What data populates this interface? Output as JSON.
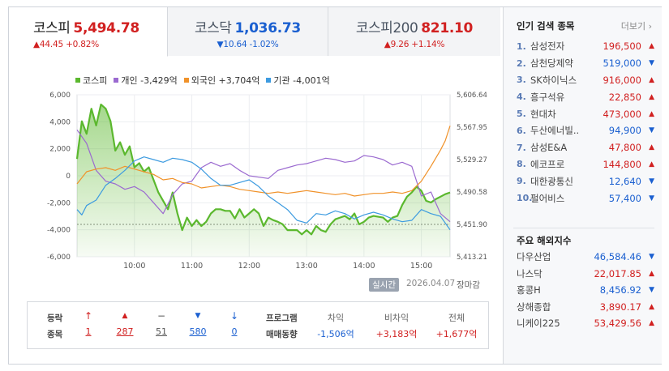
{
  "tabs": [
    {
      "name": "코스피",
      "value": "5,494.78",
      "change": "▲44.45 +0.82%",
      "dir": "up"
    },
    {
      "name": "코스닥",
      "value": "1,036.73",
      "change": "▼10.64 -1.02%",
      "dir": "down"
    },
    {
      "name": "코스피200",
      "value": "821.10",
      "change": "▲9.26 +1.14%",
      "dir": "up"
    }
  ],
  "legend": [
    {
      "label": "코스피",
      "color": "#5bb82e"
    },
    {
      "label": "개인 -3,429억",
      "color": "#9b6ad0"
    },
    {
      "label": "외국인 +3,704억",
      "color": "#f0922a"
    },
    {
      "label": "기관 -4,001억",
      "color": "#3d9be0"
    }
  ],
  "chart_data": {
    "type": "line",
    "x_ticks": [
      "10:00",
      "11:00",
      "12:00",
      "13:00",
      "14:00",
      "15:00"
    ],
    "x_range": [
      "09:00",
      "15:30"
    ],
    "y_left_ticks": [
      "6,000",
      "4,000",
      "2,000",
      "0",
      "-2,000",
      "-4,000",
      "-6,000"
    ],
    "y_left_range": [
      -6000,
      6000
    ],
    "y_left_unit": "억",
    "y_right_ticks": [
      "5,606.64",
      "5,567.95",
      "5,529.27",
      "5,490.58",
      "5,451.90",
      "5,413.21"
    ],
    "y_right_range": [
      5413.21,
      5606.64
    ],
    "reference_line": 5451.9,
    "series": [
      {
        "name": "코스피",
        "axis": "right",
        "color": "#5bb82e",
        "x": [
          "09:00",
          "09:05",
          "09:10",
          "09:15",
          "09:20",
          "09:25",
          "09:30",
          "09:35",
          "09:40",
          "09:45",
          "09:50",
          "09:55",
          "10:00",
          "10:05",
          "10:10",
          "10:15",
          "10:20",
          "10:25",
          "10:30",
          "10:35",
          "10:40",
          "10:45",
          "10:50",
          "10:55",
          "11:00",
          "11:05",
          "11:10",
          "11:15",
          "11:20",
          "11:25",
          "11:30",
          "11:35",
          "11:40",
          "11:45",
          "11:50",
          "11:55",
          "12:00",
          "12:05",
          "12:10",
          "12:15",
          "12:20",
          "12:25",
          "12:30",
          "12:35",
          "12:40",
          "12:45",
          "12:50",
          "12:55",
          "13:00",
          "13:05",
          "13:10",
          "13:15",
          "13:20",
          "13:25",
          "13:30",
          "13:35",
          "13:40",
          "13:45",
          "13:50",
          "13:55",
          "14:00",
          "14:05",
          "14:10",
          "14:15",
          "14:20",
          "14:25",
          "14:30",
          "14:35",
          "14:40",
          "14:45",
          "14:50",
          "14:55",
          "15:00",
          "15:05",
          "15:10",
          "15:15",
          "15:20",
          "15:25",
          "15:30"
        ],
        "y": [
          5530,
          5575,
          5560,
          5590,
          5570,
          5595,
          5590,
          5575,
          5540,
          5550,
          5535,
          5545,
          5520,
          5525,
          5515,
          5520,
          5505,
          5490,
          5480,
          5470,
          5490,
          5465,
          5445,
          5460,
          5450,
          5457,
          5450,
          5455,
          5465,
          5470,
          5470,
          5468,
          5468,
          5459,
          5470,
          5460,
          5465,
          5470,
          5465,
          5450,
          5460,
          5457,
          5455,
          5452,
          5445,
          5445,
          5445,
          5440,
          5445,
          5440,
          5450,
          5445,
          5443,
          5452,
          5458,
          5460,
          5462,
          5458,
          5465,
          5452,
          5455,
          5460,
          5462,
          5461,
          5460,
          5455,
          5460,
          5462,
          5475,
          5485,
          5490,
          5497,
          5492,
          5480,
          5478,
          5482,
          5485,
          5488,
          5490
        ]
      },
      {
        "name": "개인",
        "axis": "left",
        "color": "#9b6ad0",
        "x": [
          "09:00",
          "09:10",
          "09:20",
          "09:30",
          "09:40",
          "09:50",
          "10:00",
          "10:10",
          "10:20",
          "10:30",
          "10:40",
          "10:50",
          "11:00",
          "11:10",
          "11:20",
          "11:30",
          "11:40",
          "11:50",
          "12:00",
          "12:10",
          "12:20",
          "12:30",
          "12:40",
          "12:50",
          "13:00",
          "13:10",
          "13:20",
          "13:30",
          "13:40",
          "13:50",
          "14:00",
          "14:10",
          "14:20",
          "14:30",
          "14:40",
          "14:50",
          "15:00",
          "15:10",
          "15:20",
          "15:30"
        ],
        "y": [
          3400,
          2400,
          400,
          -400,
          -600,
          -1000,
          -800,
          -1200,
          -2000,
          -2800,
          -1400,
          -600,
          -400,
          600,
          1000,
          700,
          900,
          400,
          0,
          -100,
          -200,
          400,
          600,
          800,
          900,
          1100,
          1300,
          1200,
          1000,
          1100,
          1500,
          1400,
          1200,
          800,
          1000,
          700,
          -1500,
          -1200,
          -2800,
          -3400
        ]
      },
      {
        "name": "외국인",
        "axis": "left",
        "color": "#f0922a",
        "x": [
          "09:00",
          "09:10",
          "09:20",
          "09:30",
          "09:40",
          "09:50",
          "10:00",
          "10:10",
          "10:20",
          "10:30",
          "10:40",
          "10:50",
          "11:00",
          "11:10",
          "11:20",
          "11:30",
          "11:40",
          "11:50",
          "12:00",
          "12:10",
          "12:20",
          "12:30",
          "12:40",
          "12:50",
          "13:00",
          "13:10",
          "13:20",
          "13:30",
          "13:40",
          "13:50",
          "14:00",
          "14:10",
          "14:20",
          "14:30",
          "14:40",
          "14:50",
          "15:00",
          "15:10",
          "15:20",
          "15:25",
          "15:30"
        ],
        "y": [
          -600,
          300,
          500,
          600,
          400,
          700,
          500,
          300,
          100,
          -300,
          -200,
          -500,
          -600,
          -900,
          -800,
          -700,
          -800,
          -1000,
          -1100,
          -1200,
          -1300,
          -1200,
          -1300,
          -1200,
          -1100,
          -1200,
          -1300,
          -1400,
          -1300,
          -1500,
          -1400,
          -1300,
          -1300,
          -1200,
          -1300,
          -1100,
          -400,
          700,
          1900,
          2600,
          3700
        ]
      },
      {
        "name": "기관",
        "axis": "left",
        "color": "#3d9be0",
        "x": [
          "09:00",
          "09:05",
          "09:10",
          "09:20",
          "09:30",
          "09:40",
          "09:50",
          "10:00",
          "10:10",
          "10:20",
          "10:30",
          "10:40",
          "10:50",
          "11:00",
          "11:10",
          "11:20",
          "11:30",
          "11:40",
          "11:50",
          "12:00",
          "12:10",
          "12:20",
          "12:30",
          "12:40",
          "12:50",
          "13:00",
          "13:10",
          "13:20",
          "13:30",
          "13:40",
          "13:50",
          "14:00",
          "14:10",
          "14:20",
          "14:30",
          "14:40",
          "14:50",
          "15:00",
          "15:10",
          "15:20",
          "15:30"
        ],
        "y": [
          -2500,
          -2900,
          -2200,
          -1800,
          -700,
          -200,
          400,
          1100,
          1400,
          1200,
          1000,
          1300,
          1200,
          1000,
          500,
          -200,
          -700,
          -700,
          -500,
          -300,
          -800,
          -1500,
          -2000,
          -2500,
          -3300,
          -3500,
          -2800,
          -2900,
          -2600,
          -2800,
          -3200,
          -2900,
          -2700,
          -2900,
          -3200,
          -3400,
          -3300,
          -2500,
          -2800,
          -3000,
          -4000
        ]
      }
    ]
  },
  "badge": "실시간",
  "date": "2026.04.07",
  "closed": "장마감",
  "breadth": {
    "caption1": "등락",
    "caption2": "종목",
    "items": [
      {
        "icon": "↑",
        "value": "1",
        "color": "#d12020"
      },
      {
        "icon": "▲",
        "value": "287",
        "color": "#d12020"
      },
      {
        "icon": "−",
        "value": "51",
        "color": "#555555"
      },
      {
        "icon": "▼",
        "value": "580",
        "color": "#1a5fd0"
      },
      {
        "icon": "↓",
        "value": "0",
        "color": "#1a5fd0"
      }
    ]
  },
  "program": {
    "caption1": "프로그램",
    "caption2": "매매동향",
    "cols": [
      {
        "head": "차익",
        "value": "-1,506억",
        "dir": "down"
      },
      {
        "head": "비차익",
        "value": "+3,183억",
        "dir": "up"
      },
      {
        "head": "전체",
        "value": "+1,677억",
        "dir": "up"
      }
    ]
  },
  "popular": {
    "title": "인기 검색 종목",
    "more": "더보기",
    "items": [
      {
        "rank": "1.",
        "name": "삼성전자",
        "price": "196,500",
        "dir": "up"
      },
      {
        "rank": "2.",
        "name": "삼천당제약",
        "price": "519,000",
        "dir": "down"
      },
      {
        "rank": "3.",
        "name": "SK하이닉스",
        "price": "916,000",
        "dir": "up"
      },
      {
        "rank": "4.",
        "name": "흥구석유",
        "price": "22,850",
        "dir": "up"
      },
      {
        "rank": "5.",
        "name": "현대차",
        "price": "473,000",
        "dir": "up"
      },
      {
        "rank": "6.",
        "name": "두산에너빌..",
        "price": "94,900",
        "dir": "down"
      },
      {
        "rank": "7.",
        "name": "삼성E&A",
        "price": "47,800",
        "dir": "up"
      },
      {
        "rank": "8.",
        "name": "에코프로",
        "price": "144,800",
        "dir": "up"
      },
      {
        "rank": "9.",
        "name": "대한광통신",
        "price": "12,640",
        "dir": "down"
      },
      {
        "rank": "10.",
        "name": "펄어비스",
        "price": "57,400",
        "dir": "down"
      }
    ]
  },
  "world": {
    "title": "주요 해외지수",
    "items": [
      {
        "name": "다우산업",
        "value": "46,584.46",
        "dir": "down"
      },
      {
        "name": "나스닥",
        "value": "22,017.85",
        "dir": "up"
      },
      {
        "name": "홍콩H",
        "value": "8,456.92",
        "dir": "down"
      },
      {
        "name": "상해종합",
        "value": "3,890.17",
        "dir": "up"
      },
      {
        "name": "니케이225",
        "value": "53,429.56",
        "dir": "up"
      }
    ]
  }
}
